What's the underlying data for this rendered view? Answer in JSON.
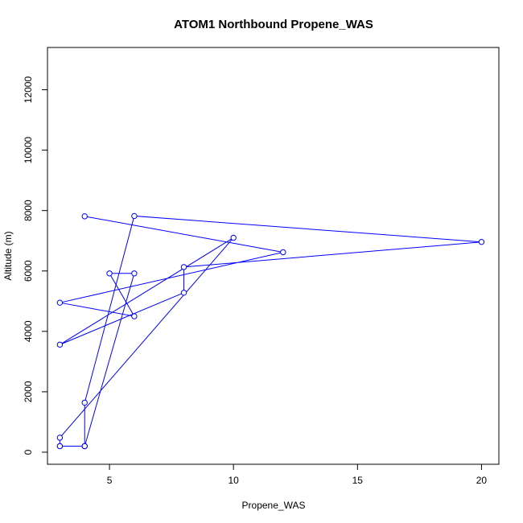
{
  "chart_data": {
    "type": "line",
    "title": "ATOM1 Northbound Propene_WAS",
    "xlabel": "Propene_WAS",
    "ylabel": "Altitude (m)",
    "xlim": [
      2.5,
      20.7
    ],
    "ylim": [
      -400,
      13400
    ],
    "x_ticks": [
      5,
      10,
      15,
      20
    ],
    "y_ticks": [
      0,
      2000,
      4000,
      6000,
      8000,
      10000,
      12000
    ],
    "grid": false,
    "legend": "none",
    "marker": "open-circle",
    "color": "#0000ff",
    "series": [
      {
        "points": [
          [
            3,
            200
          ],
          [
            4,
            200
          ],
          [
            4,
            200
          ],
          [
            3,
            200
          ],
          [
            3,
            480
          ],
          [
            10,
            7100
          ],
          [
            3,
            3560
          ],
          [
            8,
            5280
          ],
          [
            8,
            6130
          ],
          [
            20,
            6960
          ],
          [
            6,
            7820
          ],
          [
            4,
            1640
          ],
          [
            4,
            200
          ],
          [
            6,
            5920
          ],
          [
            5,
            5920
          ],
          [
            6,
            4500
          ],
          [
            3,
            4950
          ],
          [
            12,
            6620
          ],
          [
            4,
            7810
          ]
        ]
      }
    ]
  }
}
